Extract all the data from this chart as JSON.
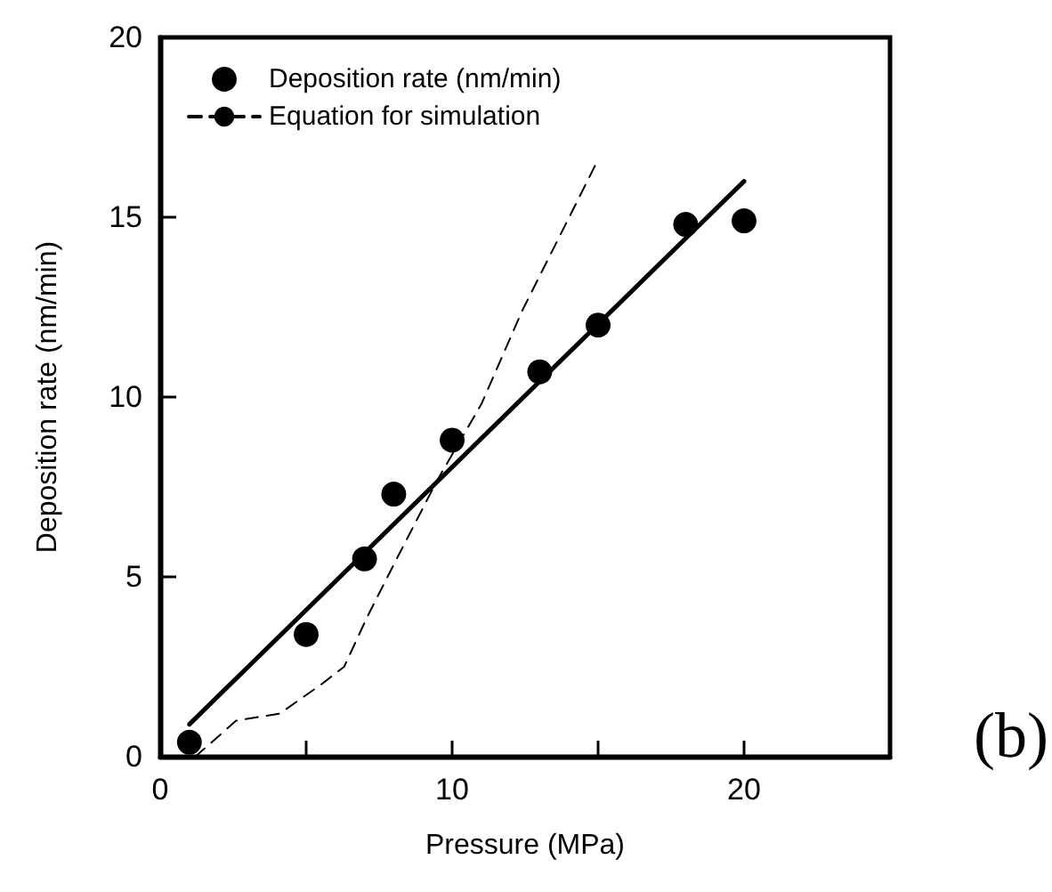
{
  "chart_data": {
    "type": "scatter",
    "xlabel": "Pressure (MPa)",
    "ylabel": "Deposition rate (nm/min)",
    "xlim": [
      0,
      25
    ],
    "xticks": [
      0,
      {
        "value": 5,
        "label": null
      },
      10,
      {
        "value": 15,
        "label": null
      },
      20,
      {
        "value": 25,
        "label": null
      }
    ],
    "ylim": [
      0,
      20
    ],
    "yticks": [
      0,
      5,
      10,
      15,
      20
    ],
    "grid": false,
    "legend": "top left",
    "marker": "circle",
    "annotations": [
      "(b)"
    ],
    "series": [
      {
        "name": "Deposition rate (nm/min)",
        "color": "#000000",
        "x": [
          1,
          5,
          7,
          8,
          10,
          13,
          15,
          18,
          20
        ],
        "values": [
          0.4,
          3.4,
          5.5,
          7.3,
          8.8,
          10.7,
          12.0,
          14.8,
          14.9
        ]
      },
      {
        "type": "line",
        "color": "#000000",
        "marker": "none",
        "line_style": "solid",
        "x": [
          1,
          20
        ],
        "values": [
          0.9,
          16.0
        ]
      },
      {
        "name": "Equation for simulation",
        "type": "line",
        "color": "#000000",
        "marker": "none",
        "line_style": "dashed",
        "x": [
          1.2,
          2.6,
          4.1,
          5.5,
          6.3,
          7.1,
          8.1,
          9.5,
          11,
          12.4,
          15
        ],
        "values": [
          0,
          1.0,
          1.2,
          2.0,
          2.5,
          3.9,
          5.5,
          7.7,
          9.8,
          12.4,
          16.6
        ]
      }
    ]
  }
}
